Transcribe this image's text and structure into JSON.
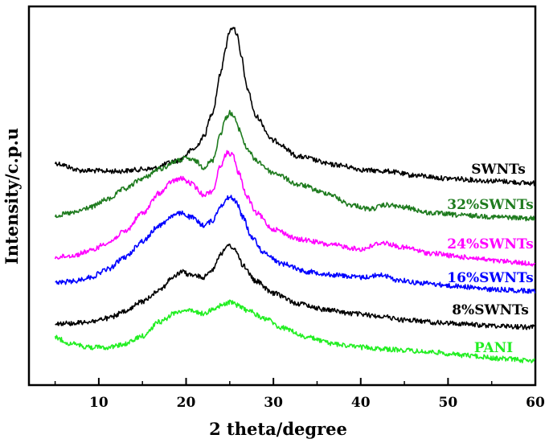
{
  "chart_data": {
    "type": "line",
    "title": "",
    "xlabel": "2 theta/degree",
    "ylabel": "Intensity/c.p.u",
    "xlim": [
      2,
      60
    ],
    "x_ticks": [
      "10",
      "20",
      "30",
      "40",
      "50",
      "60"
    ],
    "y_ticks_shown": false,
    "grid": false,
    "legend": "inline labels at right end of each curve",
    "series": [
      {
        "name": "SWNTs",
        "color": "#000000",
        "points": [
          [
            5,
            203
          ],
          [
            8,
            212
          ],
          [
            12,
            213
          ],
          [
            16,
            210
          ],
          [
            19,
            200
          ],
          [
            21,
            185
          ],
          [
            22,
            170
          ],
          [
            23,
            140
          ],
          [
            24,
            90
          ],
          [
            24.5,
            60
          ],
          [
            25,
            38
          ],
          [
            25.4,
            33
          ],
          [
            25.8,
            42
          ],
          [
            26.3,
            70
          ],
          [
            27,
            110
          ],
          [
            28,
            145
          ],
          [
            30,
            175
          ],
          [
            33,
            195
          ],
          [
            37,
            205
          ],
          [
            41,
            212
          ],
          [
            43,
            213
          ],
          [
            46,
            218
          ],
          [
            50,
            222
          ],
          [
            55,
            225
          ],
          [
            60,
            228
          ]
        ]
      },
      {
        "name": "32%SWNTs",
        "color": "#1e7b1e",
        "points": [
          [
            5,
            268
          ],
          [
            7,
            265
          ],
          [
            9,
            258
          ],
          [
            11,
            248
          ],
          [
            13,
            235
          ],
          [
            15,
            222
          ],
          [
            17,
            210
          ],
          [
            19,
            200
          ],
          [
            20,
            197
          ],
          [
            21,
            200
          ],
          [
            22,
            208
          ],
          [
            23,
            200
          ],
          [
            24,
            165
          ],
          [
            24.5,
            148
          ],
          [
            25,
            140
          ],
          [
            25.5,
            145
          ],
          [
            26,
            160
          ],
          [
            27,
            185
          ],
          [
            28,
            200
          ],
          [
            30,
            215
          ],
          [
            33,
            230
          ],
          [
            36,
            240
          ],
          [
            39,
            255
          ],
          [
            41,
            260
          ],
          [
            43,
            255
          ],
          [
            45,
            258
          ],
          [
            48,
            265
          ],
          [
            52,
            268
          ],
          [
            56,
            270
          ],
          [
            60,
            272
          ]
        ]
      },
      {
        "name": "24%SWNTs",
        "color": "#ff00ff",
        "points": [
          [
            5,
            320
          ],
          [
            7,
            318
          ],
          [
            9,
            312
          ],
          [
            11,
            302
          ],
          [
            13,
            288
          ],
          [
            15,
            265
          ],
          [
            17,
            240
          ],
          [
            18.5,
            225
          ],
          [
            19.5,
            222
          ],
          [
            20.5,
            228
          ],
          [
            22,
            242
          ],
          [
            23,
            238
          ],
          [
            24,
            205
          ],
          [
            24.7,
            190
          ],
          [
            25.3,
            192
          ],
          [
            26,
            215
          ],
          [
            27,
            245
          ],
          [
            28,
            265
          ],
          [
            30,
            285
          ],
          [
            33,
            298
          ],
          [
            37,
            305
          ],
          [
            40,
            310
          ],
          [
            42.5,
            302
          ],
          [
            45,
            308
          ],
          [
            48,
            315
          ],
          [
            52,
            320
          ],
          [
            56,
            325
          ],
          [
            60,
            328
          ]
        ]
      },
      {
        "name": "16%SWNTs",
        "color": "#0000ff",
        "points": [
          [
            5,
            352
          ],
          [
            7,
            350
          ],
          [
            9,
            345
          ],
          [
            11,
            335
          ],
          [
            13,
            320
          ],
          [
            15,
            300
          ],
          [
            17,
            280
          ],
          [
            18.5,
            268
          ],
          [
            19.5,
            265
          ],
          [
            20.5,
            270
          ],
          [
            22,
            280
          ],
          [
            23,
            275
          ],
          [
            24,
            255
          ],
          [
            25,
            245
          ],
          [
            25.7,
            250
          ],
          [
            26.5,
            270
          ],
          [
            27.5,
            295
          ],
          [
            29,
            315
          ],
          [
            31,
            328
          ],
          [
            34,
            338
          ],
          [
            37,
            342
          ],
          [
            40,
            345
          ],
          [
            42.5,
            342
          ],
          [
            44,
            348
          ],
          [
            47,
            352
          ],
          [
            51,
            356
          ],
          [
            55,
            360
          ],
          [
            60,
            362
          ]
        ]
      },
      {
        "name": "8%SWNTs",
        "color": "#000000",
        "points": [
          [
            5,
            402
          ],
          [
            7,
            402
          ],
          [
            9,
            400
          ],
          [
            11,
            396
          ],
          [
            13,
            388
          ],
          [
            15,
            375
          ],
          [
            17,
            360
          ],
          [
            18.5,
            345
          ],
          [
            19.5,
            338
          ],
          [
            20.5,
            342
          ],
          [
            22,
            345
          ],
          [
            23,
            335
          ],
          [
            24,
            315
          ],
          [
            25,
            305
          ],
          [
            25.7,
            312
          ],
          [
            26.5,
            330
          ],
          [
            28,
            350
          ],
          [
            30,
            365
          ],
          [
            33,
            378
          ],
          [
            36,
            385
          ],
          [
            39,
            390
          ],
          [
            42,
            393
          ],
          [
            45,
            398
          ],
          [
            50,
            402
          ],
          [
            55,
            405
          ],
          [
            60,
            407
          ]
        ]
      },
      {
        "name": "PANI",
        "color": "#22ee22",
        "points": [
          [
            5,
            420
          ],
          [
            7,
            428
          ],
          [
            9,
            432
          ],
          [
            11,
            432
          ],
          [
            13,
            428
          ],
          [
            15,
            418
          ],
          [
            17,
            400
          ],
          [
            19,
            388
          ],
          [
            20,
            385
          ],
          [
            21,
            388
          ],
          [
            22,
            390
          ],
          [
            23,
            385
          ],
          [
            24,
            380
          ],
          [
            25,
            376
          ],
          [
            26,
            380
          ],
          [
            27,
            386
          ],
          [
            29,
            396
          ],
          [
            31,
            408
          ],
          [
            34,
            420
          ],
          [
            37,
            428
          ],
          [
            40,
            432
          ],
          [
            44,
            435
          ],
          [
            48,
            438
          ],
          [
            52,
            442
          ],
          [
            56,
            446
          ],
          [
            60,
            449
          ]
        ]
      }
    ]
  }
}
